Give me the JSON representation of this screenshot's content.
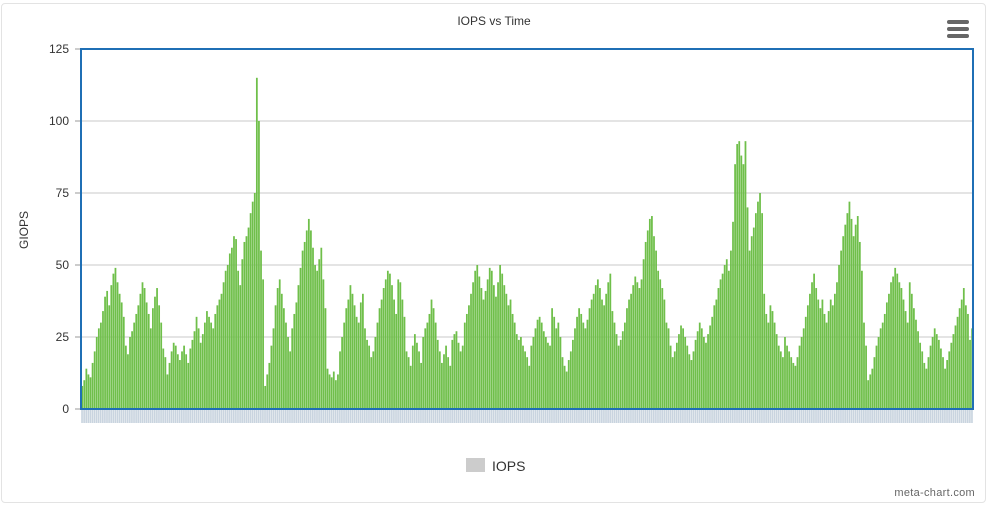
{
  "chart_data": {
    "type": "bar",
    "title": "IOPS vs Time",
    "xlabel": "",
    "ylabel": "GIOPS",
    "ylim": [
      0,
      125
    ],
    "yticks": [
      "0",
      "25",
      "50",
      "75",
      "100",
      "125"
    ],
    "grid": true,
    "legend": "bottom",
    "series": [
      {
        "name": "IOPS",
        "color": "#6fbf4a",
        "values": [
          8,
          10,
          14,
          12,
          11,
          16,
          20,
          25,
          28,
          30,
          34,
          39,
          41,
          36,
          43,
          47,
          49,
          44,
          40,
          37,
          32,
          22,
          19,
          25,
          27,
          30,
          33,
          36,
          40,
          44,
          42,
          37,
          33,
          28,
          35,
          39,
          42,
          36,
          30,
          21,
          18,
          12,
          16,
          20,
          23,
          22,
          19,
          17,
          20,
          22,
          19,
          16,
          21,
          24,
          27,
          32,
          28,
          23,
          26,
          30,
          34,
          32,
          30,
          28,
          33,
          36,
          38,
          40,
          44,
          48,
          50,
          54,
          56,
          60,
          59,
          48,
          43,
          52,
          58,
          60,
          63,
          68,
          72,
          75,
          115,
          100,
          55,
          45,
          8,
          12,
          16,
          22,
          28,
          36,
          42,
          45,
          40,
          35,
          30,
          25,
          20,
          28,
          33,
          37,
          43,
          49,
          55,
          58,
          62,
          66,
          62,
          56,
          50,
          48,
          52,
          56,
          45,
          35,
          14,
          12,
          11,
          13,
          10,
          12,
          20,
          25,
          30,
          35,
          38,
          43,
          40,
          36,
          32,
          30,
          37,
          40,
          28,
          24,
          22,
          18,
          20,
          25,
          30,
          35,
          38,
          42,
          45,
          48,
          47,
          43,
          38,
          33,
          45,
          44,
          38,
          32,
          20,
          18,
          15,
          22,
          26,
          23,
          20,
          16,
          25,
          28,
          30,
          33,
          38,
          35,
          30,
          24,
          20,
          16,
          19,
          22,
          18,
          15,
          24,
          26,
          27,
          23,
          20,
          22,
          30,
          33,
          36,
          40,
          44,
          48,
          50,
          46,
          42,
          38,
          41,
          45,
          49,
          48,
          43,
          39,
          44,
          50,
          47,
          43,
          40,
          36,
          38,
          33,
          30,
          26,
          24,
          25,
          22,
          20,
          18,
          15,
          22,
          25,
          28,
          31,
          32,
          30,
          27,
          25,
          23,
          22,
          35,
          32,
          28,
          30,
          25,
          18,
          15,
          13,
          17,
          20,
          24,
          28,
          32,
          35,
          33,
          30,
          28,
          31,
          35,
          38,
          40,
          43,
          45,
          42,
          38,
          36,
          40,
          44,
          47,
          34,
          30,
          26,
          22,
          24,
          27,
          30,
          35,
          38,
          40,
          43,
          46,
          44,
          42,
          45,
          52,
          58,
          62,
          66,
          67,
          60,
          55,
          48,
          45,
          42,
          38,
          30,
          28,
          22,
          18,
          20,
          23,
          26,
          29,
          28,
          25,
          22,
          19,
          17,
          20,
          24,
          27,
          30,
          28,
          25,
          23,
          26,
          29,
          32,
          36,
          38,
          42,
          45,
          47,
          50,
          52,
          48,
          55,
          65,
          85,
          92,
          93,
          88,
          85,
          93,
          70,
          55,
          60,
          63,
          68,
          72,
          75,
          68,
          40,
          33,
          30,
          36,
          34,
          30,
          26,
          22,
          20,
          18,
          25,
          22,
          20,
          18,
          16,
          15,
          18,
          22,
          25,
          28,
          32,
          36,
          40,
          44,
          47,
          42,
          38,
          35,
          38,
          33,
          30,
          34,
          38,
          36,
          40,
          44,
          50,
          55,
          60,
          64,
          68,
          72,
          66,
          60,
          64,
          67,
          58,
          48,
          30,
          22,
          10,
          12,
          14,
          18,
          22,
          25,
          28,
          30,
          33,
          37,
          40,
          44,
          46,
          49,
          47,
          44,
          42,
          38,
          34,
          30,
          44,
          40,
          35,
          31,
          27,
          23,
          20,
          16,
          14,
          18,
          22,
          25,
          28,
          26,
          24,
          21,
          18,
          14,
          17,
          20,
          23,
          26,
          29,
          32,
          35,
          38,
          42,
          36,
          33,
          24,
          28
        ]
      }
    ]
  },
  "watermark": "meta-chart.com",
  "menu_icon": "hamburger-menu-icon"
}
